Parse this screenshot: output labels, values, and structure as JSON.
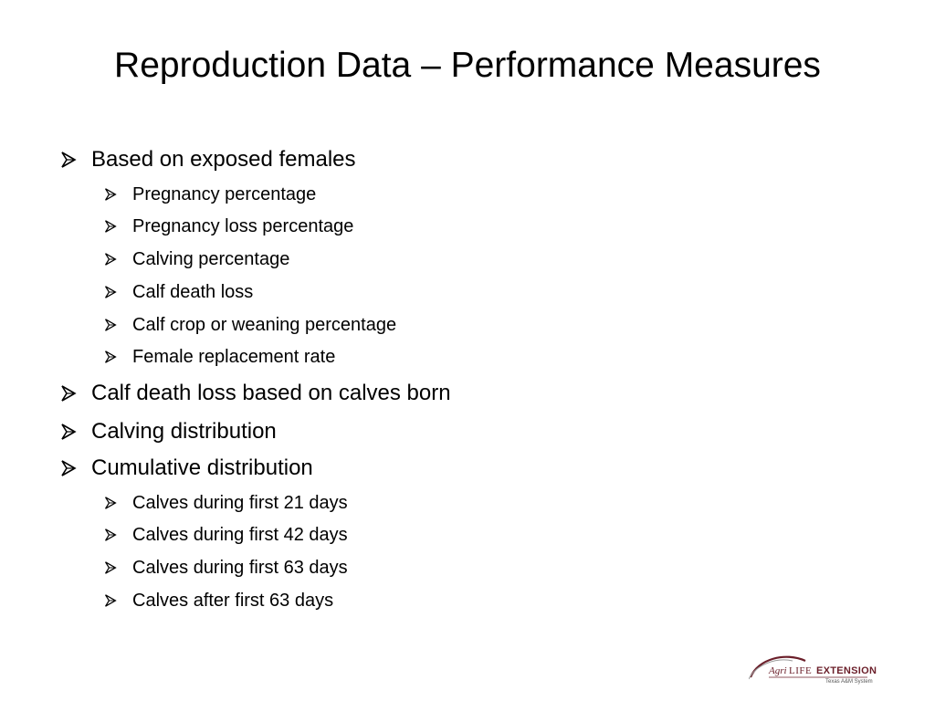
{
  "slide": {
    "title": "Reproduction Data – Performance Measures",
    "bullets": [
      {
        "level": 1,
        "text": "Based on exposed females"
      },
      {
        "level": 2,
        "text": "Pregnancy percentage"
      },
      {
        "level": 2,
        "text": "Pregnancy loss percentage"
      },
      {
        "level": 2,
        "text": "Calving percentage"
      },
      {
        "level": 2,
        "text": "Calf death loss"
      },
      {
        "level": 2,
        "text": "Calf crop or weaning percentage"
      },
      {
        "level": 2,
        "text": "Female replacement rate"
      },
      {
        "level": 1,
        "text": "Calf death loss based on calves born"
      },
      {
        "level": 1,
        "text": "Calving distribution"
      },
      {
        "level": 1,
        "text": "Cumulative distribution"
      },
      {
        "level": 2,
        "text": "Calves during first 21 days"
      },
      {
        "level": 2,
        "text": "Calves during first 42 days"
      },
      {
        "level": 2,
        "text": "Calves during first 63 days"
      },
      {
        "level": 2,
        "text": "Calves after first 63 days"
      }
    ],
    "bullet_icon": "arrow-bullet-icon"
  },
  "logo": {
    "agri": "Agri",
    "life": "LIFE",
    "extension": "EXTENSION",
    "subtitle": "Texas A&M System",
    "color": "#6b1f2a"
  }
}
